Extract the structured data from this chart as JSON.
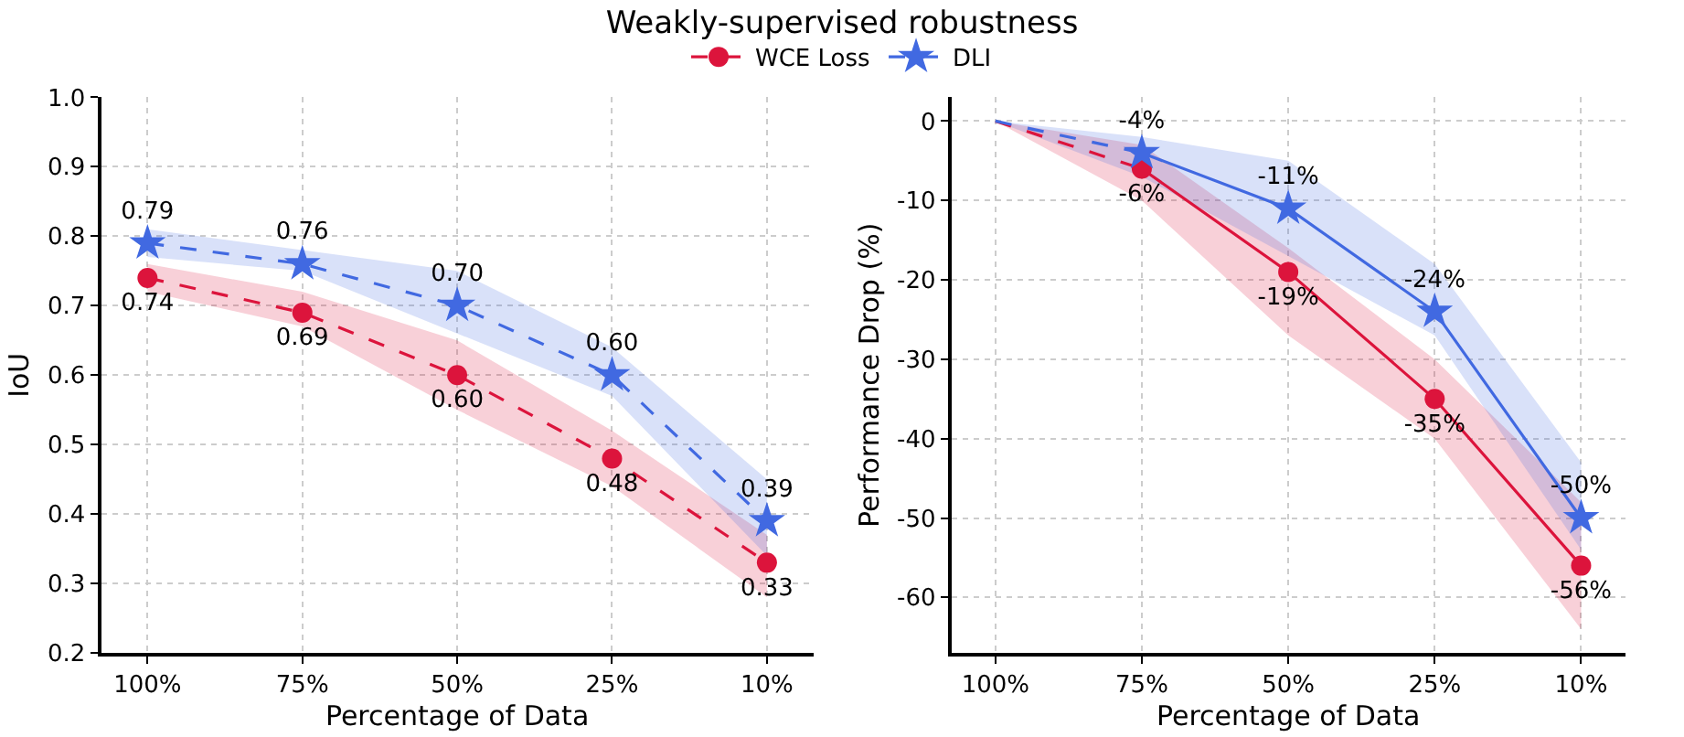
{
  "chart_data": [
    {
      "type": "line",
      "title": "Weakly-supervised robustness",
      "xlabel": "Percentage of Data",
      "ylabel": "IoU",
      "categories": [
        "100%",
        "75%",
        "50%",
        "25%",
        "10%"
      ],
      "ylim": [
        0.2,
        1.0
      ],
      "yticks": [
        0.2,
        0.3,
        0.4,
        0.5,
        0.6,
        0.7,
        0.8,
        0.9,
        {
          "value": 1.0,
          "label": "1.0"
        }
      ],
      "grid": true,
      "legend": "top",
      "series": [
        {
          "name": "WCE Loss",
          "color": "#dc143c",
          "marker": "circle",
          "line_style": "dashed",
          "values": [
            0.74,
            0.69,
            0.6,
            0.48,
            0.33
          ],
          "lower": [
            0.72,
            0.67,
            0.55,
            0.44,
            0.28
          ],
          "upper": [
            0.76,
            0.72,
            0.65,
            0.52,
            0.37
          ],
          "value_labels": [
            "0.74",
            "0.69",
            "0.60",
            "0.48",
            "0.33"
          ]
        },
        {
          "name": "DLI",
          "color": "#4169e1",
          "marker": "star",
          "line_style": "dashed",
          "values": [
            0.79,
            0.76,
            0.7,
            0.6,
            0.39
          ],
          "lower": [
            0.77,
            0.75,
            0.66,
            0.57,
            0.34
          ],
          "upper": [
            0.81,
            0.78,
            0.75,
            0.64,
            0.45
          ],
          "value_labels": [
            "0.79",
            "0.76",
            "0.70",
            "0.60",
            "0.39"
          ]
        }
      ]
    },
    {
      "type": "line",
      "xlabel": "Percentage of Data",
      "ylabel": "Performance Drop (%)",
      "categories": [
        "100%",
        "75%",
        "50%",
        "25%",
        "10%"
      ],
      "ylim": [
        -67,
        3
      ],
      "yticks": [
        0,
        -10,
        -20,
        -30,
        -40,
        -50,
        -60
      ],
      "grid": true,
      "series": [
        {
          "color": "#dc143c",
          "marker": "none",
          "line_style": "dashed",
          "values": [
            0,
            -6,
            null,
            null,
            null
          ]
        },
        {
          "color": "#4169e1",
          "marker": "none",
          "line_style": "dashed",
          "values": [
            0,
            -4,
            null,
            null,
            null
          ]
        },
        {
          "color": "#dc143c",
          "marker": "circle",
          "line_style": "solid",
          "values": [
            null,
            -6,
            -19,
            -35,
            -56
          ],
          "lower": [
            0,
            -10,
            -27,
            -40,
            -64
          ],
          "upper": [
            0,
            -3,
            -16,
            -30,
            -48
          ],
          "value_labels": [
            null,
            "-6%",
            "-19%",
            "-35%",
            "-56%"
          ]
        },
        {
          "color": "#4169e1",
          "marker": "star",
          "line_style": "solid",
          "values": [
            null,
            -4,
            -11,
            -24,
            -50
          ],
          "lower": [
            0,
            -7,
            -17,
            -27,
            -54
          ],
          "upper": [
            0,
            -2,
            -5,
            -18,
            -43
          ],
          "value_labels": [
            null,
            "-4%",
            "-11%",
            "-24%",
            "-50%"
          ]
        }
      ]
    }
  ]
}
